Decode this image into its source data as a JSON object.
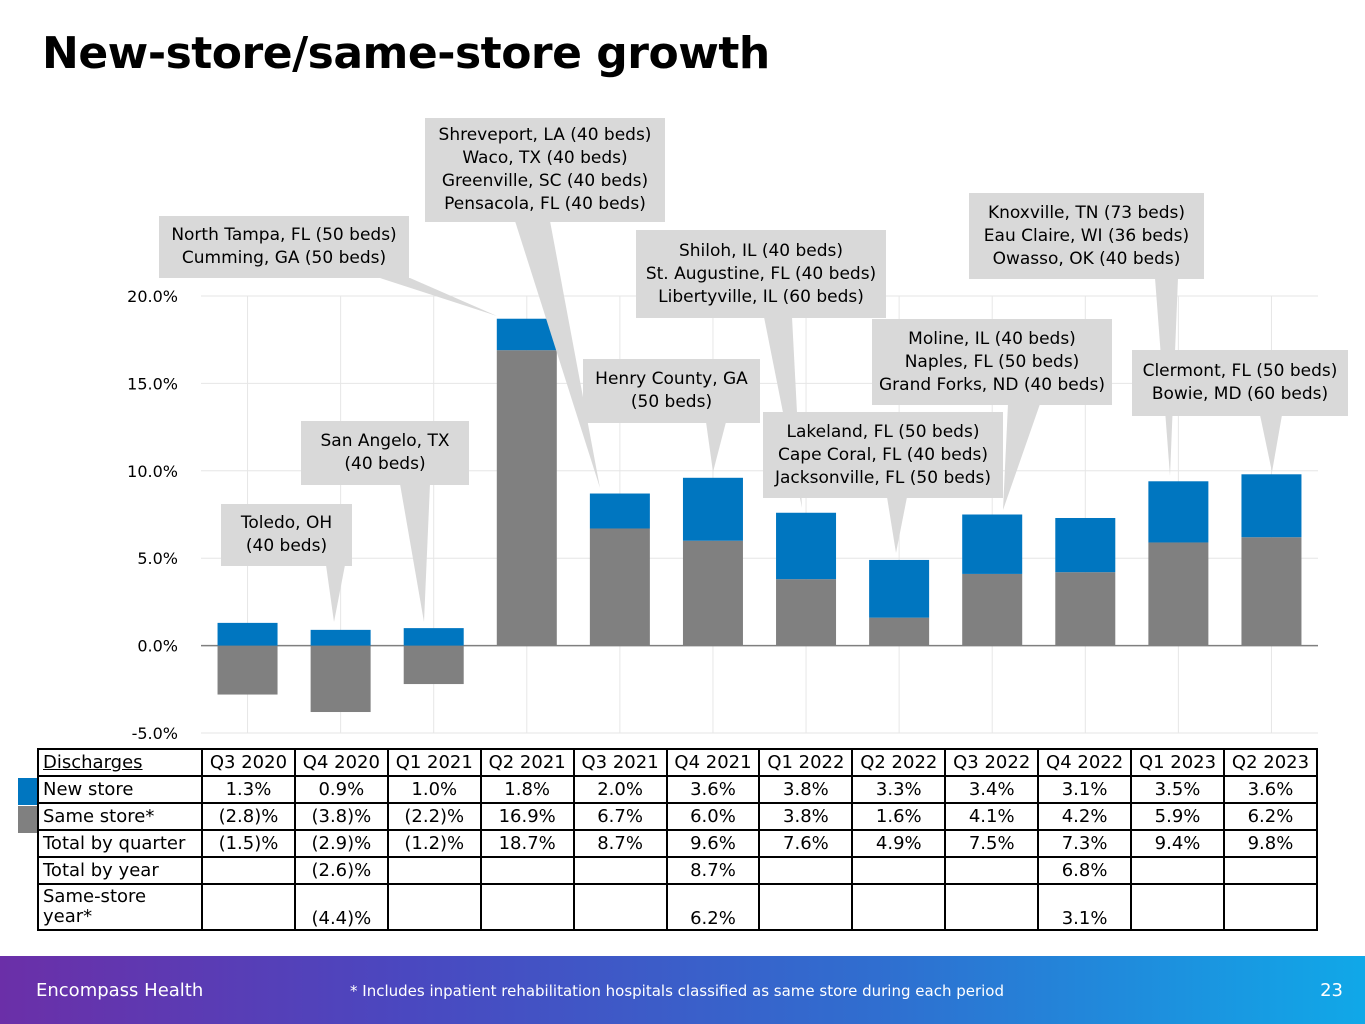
{
  "title": "New-store/same-store growth",
  "colors": {
    "new_store": "#0076c0",
    "same_store": "#808080",
    "callout": "#d9d9d9",
    "grid": "#e6e6e6"
  },
  "chart_data": {
    "type": "bar",
    "stacked": true,
    "categories": [
      "Q3 2020",
      "Q4 2020",
      "Q1 2021",
      "Q2 2021",
      "Q3 2021",
      "Q4 2021",
      "Q1 2022",
      "Q2 2022",
      "Q3 2022",
      "Q4 2022",
      "Q1 2023",
      "Q2 2023"
    ],
    "series": [
      {
        "name": "Same store*",
        "values": [
          -2.8,
          -3.8,
          -2.2,
          16.9,
          6.7,
          6.0,
          3.8,
          1.6,
          4.1,
          4.2,
          5.9,
          6.2
        ]
      },
      {
        "name": "New store",
        "values": [
          1.3,
          0.9,
          1.0,
          1.8,
          2.0,
          3.6,
          3.8,
          3.3,
          3.4,
          3.1,
          3.5,
          3.6
        ]
      }
    ],
    "ylim": [
      -5,
      20
    ],
    "yticks": [
      "-5.0%",
      "0.0%",
      "5.0%",
      "10.0%",
      "15.0%",
      "20.0%"
    ],
    "annotations": [
      {
        "category": "Q4 2020",
        "lines": [
          "Toledo, OH",
          "(40 beds)"
        ]
      },
      {
        "category": "Q1 2021",
        "lines": [
          "San Angelo, TX",
          "(40 beds)"
        ]
      },
      {
        "category": "Q2 2021",
        "lines": [
          "North Tampa, FL (50 beds)",
          "Cumming, GA (50 beds)"
        ]
      },
      {
        "category": "Q3 2021",
        "lines": [
          "Shreveport, LA (40 beds)",
          "Waco, TX (40 beds)",
          "Greenville, SC (40 beds)",
          "Pensacola, FL (40 beds)"
        ]
      },
      {
        "category": "Q4 2021",
        "lines": [
          "Henry County, GA",
          "(50 beds)"
        ]
      },
      {
        "category": "Q1 2022",
        "lines": [
          "Shiloh, IL (40 beds)",
          "St. Augustine, FL (40 beds)",
          "Libertyville, IL (60 beds)"
        ]
      },
      {
        "category": "Q2 2022",
        "lines": [
          "Lakeland, FL (50 beds)",
          "Cape Coral, FL (40 beds)",
          "Jacksonville, FL (50 beds)"
        ]
      },
      {
        "category": "Q3 2022",
        "lines": [
          "Moline, IL (40 beds)",
          "Naples, FL (50 beds)",
          "Grand Forks, ND (40 beds)"
        ]
      },
      {
        "category": "Q1 2023",
        "lines": [
          "Knoxville, TN (73 beds)",
          "Eau Claire, WI (36 beds)",
          "Owasso, OK (40 beds)"
        ]
      },
      {
        "category": "Q2 2023",
        "lines": [
          "Clermont, FL (50 beds)",
          "Bowie, MD (60 beds)"
        ]
      }
    ]
  },
  "table": {
    "header_label": "Discharges",
    "columns": [
      "Q3 2020",
      "Q4 2020",
      "Q1 2021",
      "Q2 2021",
      "Q3 2021",
      "Q4 2021",
      "Q1 2022",
      "Q2 2022",
      "Q3 2022",
      "Q4 2022",
      "Q1 2023",
      "Q2 2023"
    ],
    "rows": [
      {
        "label": "New store",
        "values": [
          "1.3%",
          "0.9%",
          "1.0%",
          "1.8%",
          "2.0%",
          "3.6%",
          "3.8%",
          "3.3%",
          "3.4%",
          "3.1%",
          "3.5%",
          "3.6%"
        ]
      },
      {
        "label": "Same store*",
        "values": [
          "(2.8)%",
          "(3.8)%",
          "(2.2)%",
          "16.9%",
          "6.7%",
          "6.0%",
          "3.8%",
          "1.6%",
          "4.1%",
          "4.2%",
          "5.9%",
          "6.2%"
        ]
      },
      {
        "label": "Total by quarter",
        "values": [
          "(1.5)%",
          "(2.9)%",
          "(1.2)%",
          "18.7%",
          "8.7%",
          "9.6%",
          "7.6%",
          "4.9%",
          "7.5%",
          "7.3%",
          "9.4%",
          "9.8%"
        ]
      },
      {
        "label": "Total by year",
        "values": [
          "",
          "(2.6)%",
          "",
          "",
          "",
          "8.7%",
          "",
          "",
          "",
          "6.8%",
          "",
          ""
        ]
      },
      {
        "label": "Same-store year*",
        "values": [
          "",
          "(4.4)%",
          "",
          "",
          "",
          "6.2%",
          "",
          "",
          "",
          "3.1%",
          "",
          ""
        ]
      }
    ]
  },
  "footer": {
    "company": "Encompass Health",
    "note": "* Includes inpatient rehabilitation hospitals classified as same store during each period",
    "page": "23"
  }
}
